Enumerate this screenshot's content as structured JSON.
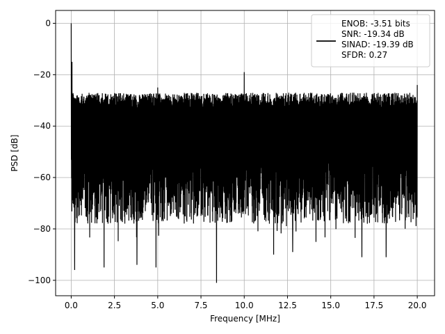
{
  "chart_data": {
    "type": "line",
    "title": "",
    "xlabel": "Frequency [MHz]",
    "ylabel": "PSD [dB]",
    "xlim": [
      -0.9,
      21.0
    ],
    "ylim": [
      -106,
      5
    ],
    "xticks": [
      0.0,
      2.5,
      5.0,
      7.5,
      10.0,
      12.5,
      15.0,
      17.5,
      20.0
    ],
    "xtick_labels": [
      "0.0",
      "2.5",
      "5.0",
      "7.5",
      "10.0",
      "12.5",
      "15.0",
      "17.5",
      "20.0"
    ],
    "yticks": [
      0,
      -20,
      -40,
      -60,
      -80,
      -100
    ],
    "ytick_labels": [
      "0",
      "−20",
      "−40",
      "−60",
      "−80",
      "−100"
    ],
    "grid": true,
    "legend_position": "top-right",
    "series": [
      {
        "color": "#000000",
        "legend_lines": [
          "ENOB: -3.51 bits",
          "SNR: -19.34 dB",
          "SINAD: -19.39 dB",
          "SFDR: 0.27"
        ],
        "x_range": [
          0,
          20
        ],
        "noise_floor_top": -30,
        "noise_floor_bottom": -78,
        "peaks": [
          {
            "x": 0.0,
            "y": 0
          },
          {
            "x": 0.05,
            "y": -15
          },
          {
            "x": 10.0,
            "y": -19
          },
          {
            "x": 20.0,
            "y": -24
          },
          {
            "x": 5.0,
            "y": -25
          },
          {
            "x": 0.2,
            "y": -96
          },
          {
            "x": 1.9,
            "y": -95
          },
          {
            "x": 3.8,
            "y": -94
          },
          {
            "x": 4.9,
            "y": -95
          },
          {
            "x": 8.4,
            "y": -101
          },
          {
            "x": 11.7,
            "y": -90
          },
          {
            "x": 12.8,
            "y": -89
          },
          {
            "x": 16.8,
            "y": -91
          },
          {
            "x": 18.2,
            "y": -91
          }
        ]
      }
    ]
  }
}
